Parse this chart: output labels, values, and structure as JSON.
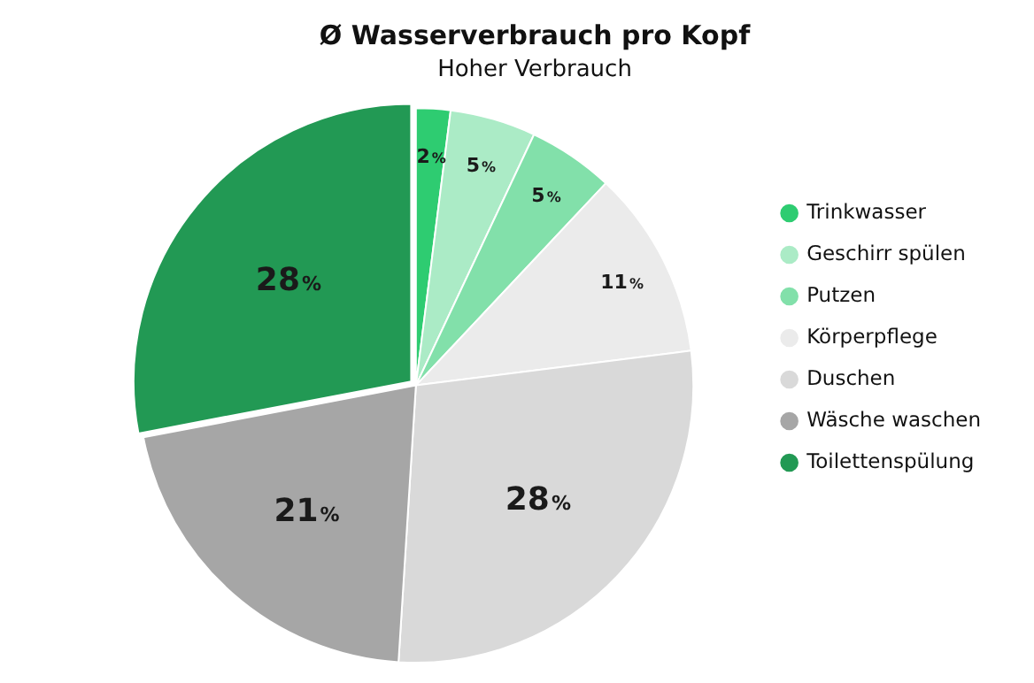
{
  "chart_data": {
    "type": "pie",
    "title": "Ø Wasserverbrauch pro Kopf",
    "subtitle": "Hoher Verbrauch",
    "categories": [
      "Trinkwasser",
      "Geschirr spülen",
      "Putzen",
      "Körperpflege",
      "Duschen",
      "Wäsche waschen",
      "Toilettenspülung"
    ],
    "values": [
      2,
      5,
      5,
      11,
      28,
      21,
      28
    ],
    "colors": [
      "#2ecc71",
      "#abebc6",
      "#82e0aa",
      "#ebebeb",
      "#d9d9d9",
      "#a6a6a6",
      "#229954"
    ],
    "value_labels": [
      "2%",
      "5%",
      "5%",
      "11%",
      "28%",
      "21%",
      "28%"
    ],
    "legend": "right"
  }
}
